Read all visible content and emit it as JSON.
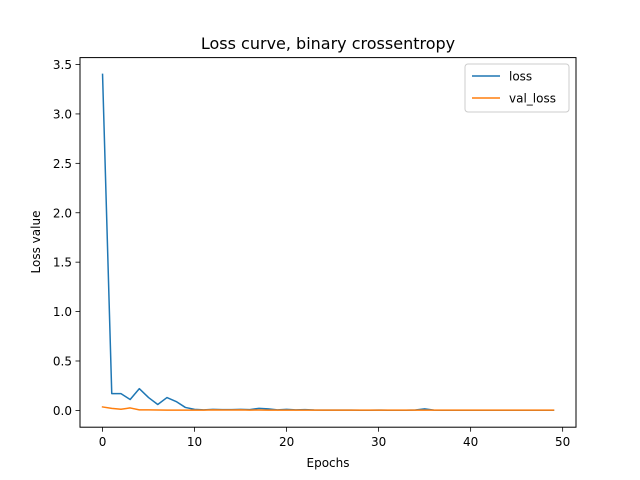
{
  "chart_data": {
    "type": "line",
    "title": "Loss curve, binary crossentropy",
    "xlabel": "Epochs",
    "ylabel": "Loss value",
    "xlim": [
      -2.45,
      51.45
    ],
    "ylim": [
      -0.17,
      3.57
    ],
    "xticks": [
      0,
      10,
      20,
      30,
      40,
      50
    ],
    "yticks": [
      0.0,
      0.5,
      1.0,
      1.5,
      2.0,
      2.5,
      3.0,
      3.5
    ],
    "grid": false,
    "legend_position": "top-right",
    "x": [
      0,
      1,
      2,
      3,
      4,
      5,
      6,
      7,
      8,
      9,
      10,
      11,
      12,
      13,
      14,
      15,
      16,
      17,
      18,
      19,
      20,
      21,
      22,
      23,
      24,
      25,
      26,
      27,
      28,
      29,
      30,
      31,
      32,
      33,
      34,
      35,
      36,
      37,
      38,
      39,
      40,
      41,
      42,
      43,
      44,
      45,
      46,
      47,
      48,
      49
    ],
    "series": [
      {
        "name": "loss",
        "color": "#1f77b4",
        "values": [
          3.4,
          0.17,
          0.17,
          0.11,
          0.22,
          0.13,
          0.06,
          0.13,
          0.09,
          0.03,
          0.01,
          0.005,
          0.01,
          0.008,
          0.008,
          0.01,
          0.008,
          0.02,
          0.015,
          0.005,
          0.01,
          0.005,
          0.008,
          0.004,
          0.003,
          0.003,
          0.003,
          0.003,
          0.002,
          0.002,
          0.003,
          0.002,
          0.002,
          0.002,
          0.004,
          0.015,
          0.003,
          0.002,
          0.002,
          0.002,
          0.002,
          0.002,
          0.002,
          0.002,
          0.002,
          0.002,
          0.002,
          0.002,
          0.002,
          0.002
        ]
      },
      {
        "name": "val_loss",
        "color": "#ff7f0e",
        "values": [
          0.035,
          0.02,
          0.012,
          0.025,
          0.005,
          0.005,
          0.004,
          0.003,
          0.003,
          0.003,
          0.003,
          0.003,
          0.005,
          0.004,
          0.004,
          0.005,
          0.003,
          0.004,
          0.003,
          0.003,
          0.003,
          0.003,
          0.003,
          0.003,
          0.003,
          0.003,
          0.003,
          0.003,
          0.003,
          0.003,
          0.003,
          0.003,
          0.003,
          0.003,
          0.003,
          0.003,
          0.003,
          0.003,
          0.003,
          0.003,
          0.003,
          0.003,
          0.003,
          0.003,
          0.003,
          0.003,
          0.003,
          0.003,
          0.003,
          0.003
        ]
      }
    ]
  }
}
